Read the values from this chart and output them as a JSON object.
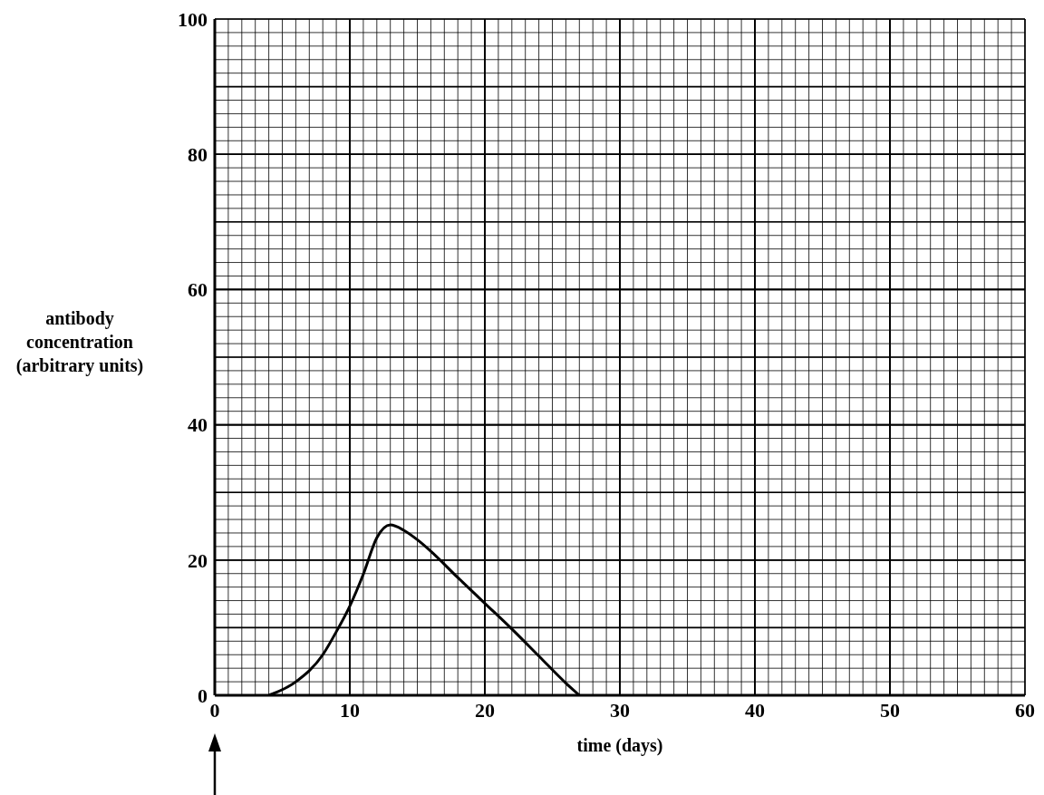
{
  "chart_data": {
    "type": "line",
    "xlabel": "time (days)",
    "ylabel": "antibody concentration (arbitrary units)",
    "xlim": [
      0,
      60
    ],
    "xticks": [
      0,
      10,
      20,
      30,
      40,
      50,
      60
    ],
    "ylim": [
      0,
      100
    ],
    "yticks": [
      0,
      20,
      40,
      60,
      80,
      100
    ],
    "grid": true,
    "series": [
      {
        "color": "#000000",
        "x": [
          4,
          6,
          8,
          9,
          10,
          11,
          12,
          13,
          14,
          15,
          16,
          18,
          20,
          22,
          24,
          26,
          27
        ],
        "values": [
          0,
          2,
          6,
          9.4,
          13.2,
          17.9,
          23.3,
          25.2,
          24.4,
          23,
          21.3,
          17.4,
          13.6,
          9.8,
          5.8,
          1.8,
          0
        ]
      }
    ]
  }
}
